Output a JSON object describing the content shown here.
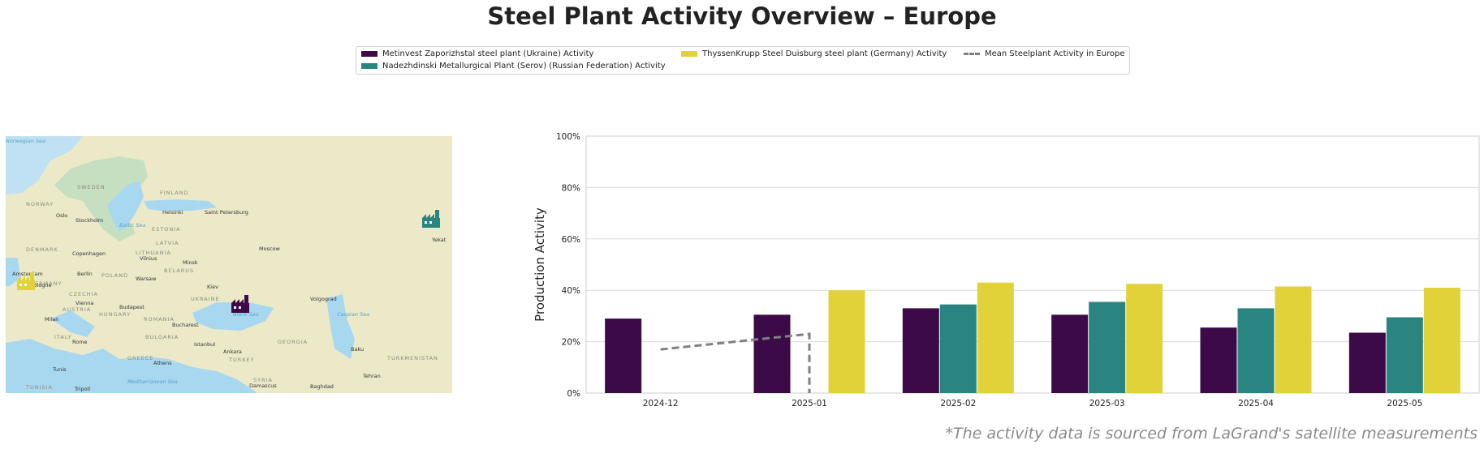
{
  "title": "Steel Plant Activity Overview – Europe",
  "footnote": "*The activity data is sourced from LaGrand's satellite measurements",
  "legend": [
    {
      "label": "Metinvest Zaporizhstal steel plant (Ukraine) Activity",
      "color": "#3b0a47",
      "kind": "bar"
    },
    {
      "label": "Nadezhdinski Metallurgical Plant (Serov) (Russian Federation) Activity",
      "color": "#2a8580",
      "kind": "bar"
    },
    {
      "label": "ThyssenKrupp Steel Duisburg steel plant (Germany) Activity",
      "color": "#e1d23a",
      "kind": "bar"
    },
    {
      "label": "Mean Steelplant Activity in Europe",
      "color": "#808080",
      "kind": "dashed-line"
    }
  ],
  "map": {
    "sea_labels": [
      "Norwegian Sea",
      "Baltic Sea",
      "Black Sea",
      "Caspian Sea",
      "Mediterranean Sea"
    ],
    "country_labels": [
      "SWEDEN",
      "FINLAND",
      "NORWAY",
      "ESTONIA",
      "LATVIA",
      "LITHUANIA",
      "DENMARK",
      "BELARUS",
      "POLAND",
      "GERMANY",
      "CZECHIA",
      "UKRAINE",
      "AUSTRIA",
      "HUNGARY",
      "ROMANIA",
      "BULGARIA",
      "ITALY",
      "GREECE",
      "TURKEY",
      "GEORGIA",
      "TURKMENISTAN",
      "SYRIA",
      "TUNISIA"
    ],
    "city_labels": [
      "Oslo",
      "Stockholm",
      "Helsinki",
      "Saint Petersburg",
      "Copenhagen",
      "Vilnius",
      "Minsk",
      "Moscow",
      "Berlin",
      "Warsaw",
      "Amsterdam",
      "Cologne",
      "Kiev",
      "Volgograd",
      "Vienna",
      "Budapest",
      "Milan",
      "Bucharest",
      "Rome",
      "Istanbul",
      "Ankara",
      "Baku",
      "Athens",
      "Tunis",
      "Tripoli",
      "Damascus",
      "Baghdad",
      "Tehran",
      "Yekat"
    ],
    "markers": [
      {
        "plant": "Metinvest Zaporizhstal",
        "color": "#3b0a47",
        "icon": "factory-icon"
      },
      {
        "plant": "Nadezhdinski Metallurgical Plant",
        "color": "#2a8580",
        "icon": "factory-icon"
      },
      {
        "plant": "ThyssenKrupp Steel Duisburg",
        "color": "#e1d23a",
        "icon": "factory-icon"
      }
    ]
  },
  "chart_data": {
    "type": "bar",
    "title": "",
    "xlabel": "",
    "ylabel": "Production Activity",
    "ylim": [
      0,
      100
    ],
    "yticks": [
      "0%",
      "20%",
      "40%",
      "60%",
      "80%",
      "100%"
    ],
    "categories": [
      "2024-12",
      "2025-01",
      "2025-02",
      "2025-03",
      "2025-04",
      "2025-05"
    ],
    "grid": "horizontal",
    "series": [
      {
        "name": "Metinvest Zaporizhstal steel plant (Ukraine) Activity",
        "color": "#3b0a47",
        "values": [
          29,
          30.5,
          33,
          30.5,
          25.5,
          23.5
        ]
      },
      {
        "name": "Nadezhdinski Metallurgical Plant (Serov) (Russian Federation) Activity",
        "color": "#2a8580",
        "values": [
          null,
          null,
          34.5,
          35.5,
          33,
          29.5
        ]
      },
      {
        "name": "ThyssenKrupp Steel Duisburg steel plant (Germany) Activity",
        "color": "#e1d23a",
        "values": [
          null,
          40,
          43,
          42.5,
          41.5,
          41
        ]
      }
    ],
    "mean_line": {
      "name": "Mean Steelplant Activity in Europe",
      "color": "#808080",
      "x": [
        "2024-12",
        "2025-01",
        "2025-01"
      ],
      "y": [
        17,
        23,
        0
      ]
    }
  }
}
